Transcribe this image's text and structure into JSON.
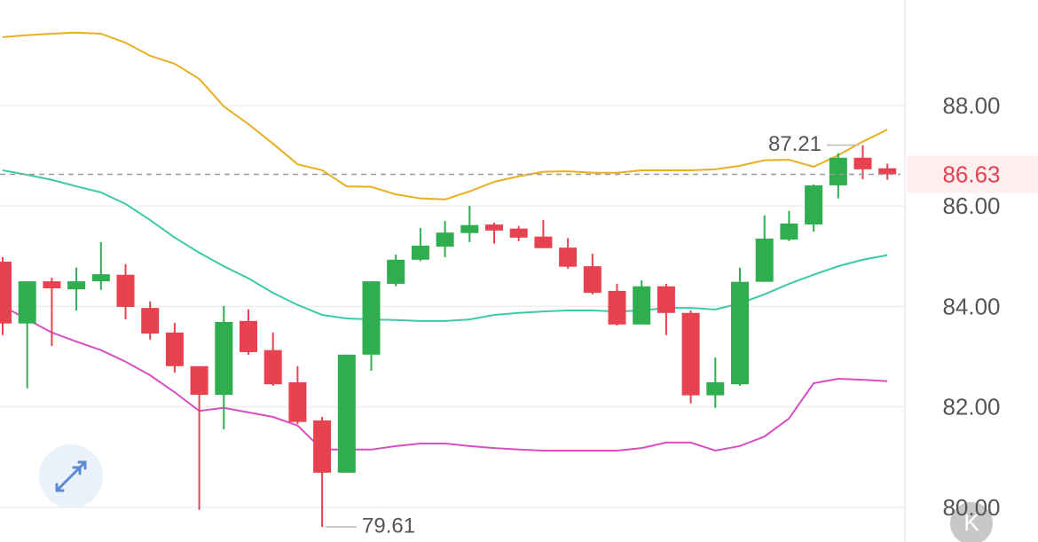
{
  "chart_data": {
    "type": "candlestick",
    "ylim": [
      79.31,
      90.1
    ],
    "yticks": [
      {
        "value": 80,
        "label": "80.00"
      },
      {
        "value": 82,
        "label": "82.00"
      },
      {
        "value": 84,
        "label": "84.00"
      },
      {
        "value": 86,
        "label": "86.00"
      },
      {
        "value": 88,
        "label": "88.00"
      }
    ],
    "grid": true,
    "up_color": "#2eae4e",
    "down_color": "#e8414f",
    "open": [
      84.89,
      83.66,
      84.5,
      84.34,
      84.5,
      84.63,
      83.97,
      83.48,
      82.81,
      82.24,
      83.71,
      83.13,
      82.49,
      81.73,
      80.69,
      83.04,
      84.45,
      84.93,
      85.19,
      85.46,
      85.63,
      85.55,
      85.39,
      85.17,
      84.8,
      84.31,
      83.64,
      84.4,
      83.87,
      82.23,
      82.45,
      84.49,
      85.33,
      85.63,
      86.41,
      86.96,
      86.75
    ],
    "high": [
      84.98,
      84.5,
      84.57,
      84.77,
      85.28,
      84.84,
      84.1,
      83.67,
      82.81,
      84.01,
      83.94,
      83.48,
      82.81,
      81.8,
      83.04,
      84.5,
      85.03,
      85.56,
      85.7,
      86.0,
      85.67,
      85.6,
      85.72,
      85.36,
      85.05,
      84.45,
      84.52,
      84.45,
      83.92,
      82.98,
      84.77,
      85.81,
      85.9,
      86.43,
      87.05,
      87.21,
      86.84
    ],
    "low": [
      83.43,
      82.37,
      83.21,
      83.92,
      84.33,
      83.74,
      83.34,
      82.68,
      79.95,
      81.55,
      83.04,
      82.42,
      81.66,
      79.61,
      80.69,
      82.72,
      84.4,
      84.9,
      84.98,
      85.28,
      85.25,
      85.3,
      85.16,
      84.75,
      84.24,
      83.62,
      83.64,
      83.43,
      82.07,
      81.98,
      82.42,
      84.49,
      85.3,
      85.49,
      86.15,
      86.53,
      86.52
    ],
    "close": [
      83.66,
      84.5,
      84.36,
      84.5,
      84.64,
      83.99,
      83.46,
      82.81,
      82.24,
      83.69,
      83.09,
      82.45,
      81.7,
      80.69,
      83.04,
      84.5,
      84.93,
      85.21,
      85.47,
      85.62,
      85.51,
      85.37,
      85.16,
      84.79,
      84.27,
      83.64,
      84.4,
      83.87,
      82.23,
      82.49,
      84.49,
      85.35,
      85.65,
      86.41,
      86.96,
      86.73,
      86.63
    ],
    "lines": [
      {
        "color": "#e8b021",
        "values": [
          89.36,
          89.4,
          89.43,
          89.45,
          89.43,
          89.25,
          88.99,
          88.83,
          88.53,
          87.98,
          87.63,
          87.24,
          86.83,
          86.71,
          86.39,
          86.38,
          86.23,
          86.15,
          86.13,
          86.29,
          86.48,
          86.59,
          86.68,
          86.69,
          86.66,
          86.66,
          86.71,
          86.71,
          86.71,
          86.73,
          86.8,
          86.91,
          86.92,
          86.78,
          87.01,
          87.28,
          87.52
        ]
      },
      {
        "color": "#3cc9a5",
        "values": [
          86.71,
          86.62,
          86.52,
          86.39,
          86.27,
          86.04,
          85.72,
          85.37,
          85.07,
          84.8,
          84.56,
          84.27,
          84.03,
          83.83,
          83.76,
          83.74,
          83.73,
          83.71,
          83.71,
          83.74,
          83.83,
          83.87,
          83.9,
          83.92,
          83.92,
          83.9,
          83.92,
          83.97,
          83.97,
          83.94,
          84.06,
          84.24,
          84.45,
          84.63,
          84.8,
          84.93,
          85.02
        ]
      },
      {
        "color": "#d64fc2",
        "values": [
          84.01,
          83.74,
          83.48,
          83.3,
          83.13,
          82.9,
          82.63,
          82.29,
          81.92,
          81.98,
          81.89,
          81.8,
          81.63,
          81.15,
          81.15,
          81.15,
          81.22,
          81.27,
          81.27,
          81.22,
          81.18,
          81.15,
          81.13,
          81.13,
          81.13,
          81.13,
          81.18,
          81.29,
          81.29,
          81.13,
          81.22,
          81.41,
          81.77,
          82.47,
          82.56,
          82.54,
          82.51
        ]
      }
    ],
    "last_price": 86.63,
    "max_label": 87.21,
    "min_label": 79.61
  },
  "logo_text": "K"
}
